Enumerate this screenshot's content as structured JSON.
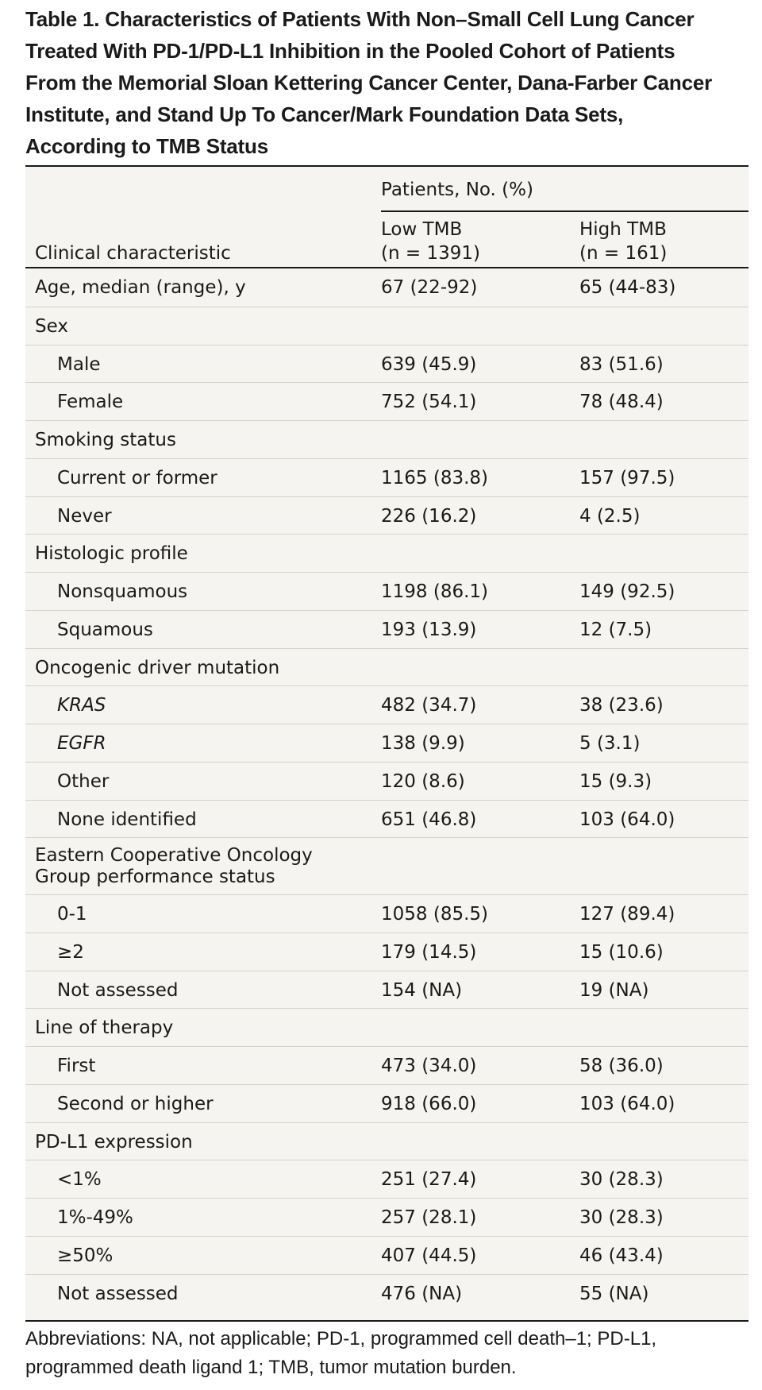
{
  "title_lines": [
    "Table 1. Characteristics of Patients With Non–Small Cell Lung Cancer",
    "Treated With PD-1/PD-L1 Inhibition in the Pooled Cohort of Patients",
    "From the Memorial Sloan Kettering Cancer Center, Dana-Farber Cancer",
    "Institute, and Stand Up To Cancer/Mark Foundation Data Sets,",
    "According to TMB Status"
  ],
  "header": {
    "group_label": "Patients, No. (%)",
    "characteristic_label": "Clinical characteristic",
    "low_tmb": [
      "Low TMB",
      "(n = 1391)"
    ],
    "high_tmb": [
      "High TMB",
      "(n = 161)"
    ]
  },
  "rows": [
    {
      "label": "Age, median (range), y",
      "low": "67 (22-92)",
      "high": "65 (44-83)"
    },
    {
      "label": "Sex",
      "low": "",
      "high": ""
    },
    {
      "label": "Male",
      "low": "639 (45.9)",
      "high": "83 (51.6)"
    },
    {
      "label": "Female",
      "low": "752 (54.1)",
      "high": "78 (48.4)"
    },
    {
      "label": "Smoking status",
      "low": "",
      "high": ""
    },
    {
      "label": "Current or former",
      "low": "1165 (83.8)",
      "high": "157 (97.5)"
    },
    {
      "label": "Never",
      "low": "226 (16.2)",
      "high": "4 (2.5)"
    },
    {
      "label": "Histologic profile",
      "low": "",
      "high": ""
    },
    {
      "label": "Nonsquamous",
      "low": "1198 (86.1)",
      "high": "149 (92.5)"
    },
    {
      "label": "Squamous",
      "low": "193 (13.9)",
      "high": "12 (7.5)"
    },
    {
      "label": "Oncogenic driver mutation",
      "low": "",
      "high": ""
    },
    {
      "label": "KRAS",
      "low": "482 (34.7)",
      "high": "38 (23.6)"
    },
    {
      "label": "EGFR",
      "low": "138 (9.9)",
      "high": "5 (3.1)"
    },
    {
      "label": "Other",
      "low": "120 (8.6)",
      "high": "15 (9.3)"
    },
    {
      "label": "None identified",
      "low": "651 (46.8)",
      "high": "103 (64.0)"
    },
    {
      "label": "Eastern Cooperative Oncology",
      "label2": "Group performance status",
      "low": "",
      "high": ""
    },
    {
      "label": "0-1",
      "low": "1058 (85.5)",
      "high": "127 (89.4)"
    },
    {
      "label": "≥2",
      "low": "179 (14.5)",
      "high": "15 (10.6)"
    },
    {
      "label": "Not assessed",
      "low": "154 (NA)",
      "high": "19 (NA)"
    },
    {
      "label": "Line of therapy",
      "low": "",
      "high": ""
    },
    {
      "label": "First",
      "low": "473 (34.0)",
      "high": "58 (36.0)"
    },
    {
      "label": "Second or higher",
      "low": "918 (66.0)",
      "high": "103 (64.0)"
    },
    {
      "label": "PD-L1 expression",
      "low": "",
      "high": ""
    },
    {
      "label": "<1%",
      "low": "251 (27.4)",
      "high": "30 (28.3)"
    },
    {
      "label": "1%-49%",
      "low": "257 (28.1)",
      "high": "30 (28.3)"
    },
    {
      "label": "≥50%",
      "low": "407 (44.5)",
      "high": "46 (43.4)"
    },
    {
      "label": "Not assessed",
      "low": "476 (NA)",
      "high": "55 (NA)"
    }
  ],
  "footnote_lines": [
    "Abbreviations: NA, not applicable; PD-1, programmed cell death–1; PD-L1,",
    "programmed death ligand 1; TMB, tumor mutation burden."
  ]
}
